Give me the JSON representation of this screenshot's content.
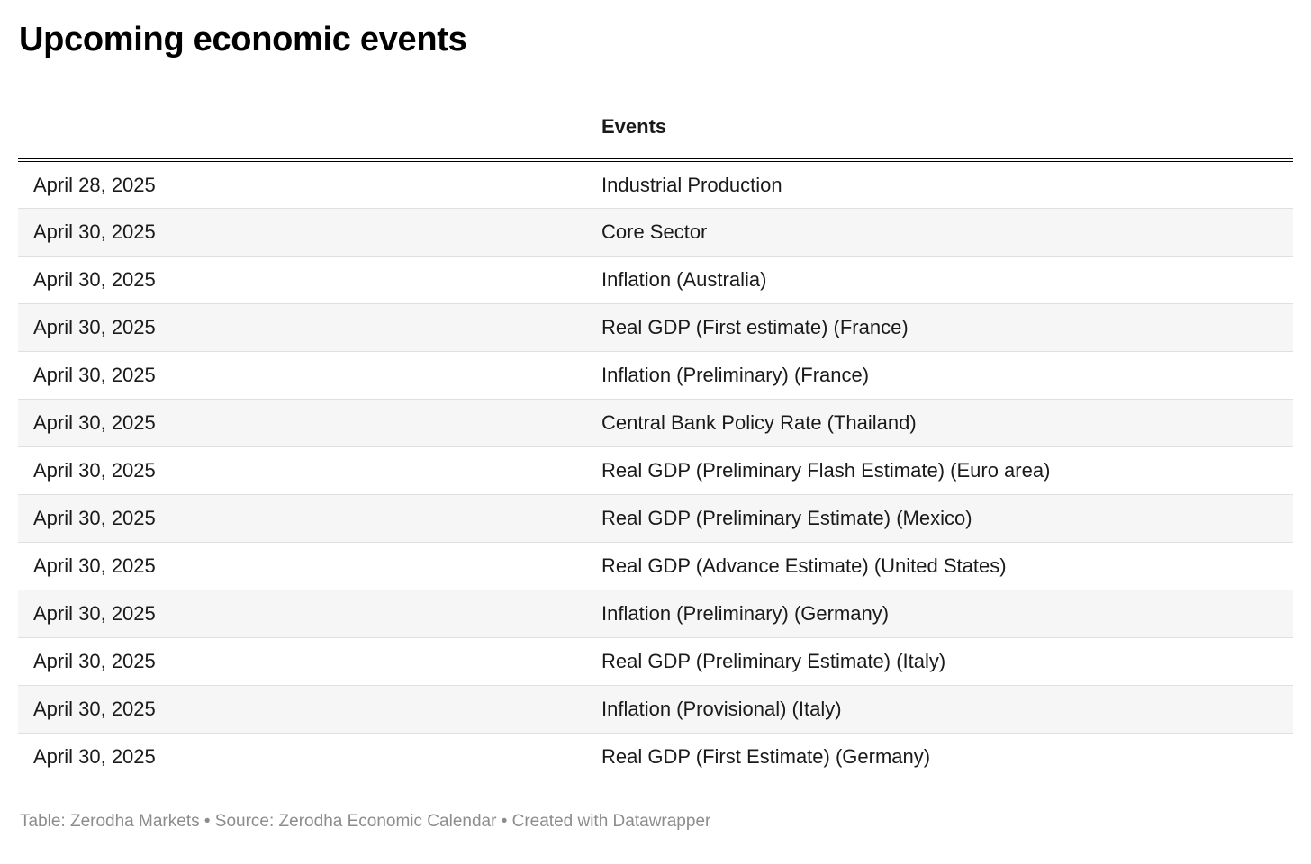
{
  "title": "Upcoming economic events",
  "header": {
    "date_column_label": "",
    "events_label": "Events"
  },
  "footer": {
    "text": "Table: Zerodha Markets • Source: Zerodha Economic Calendar • Created with Datawrapper"
  },
  "colors": {
    "stripe": "#f6f6f6",
    "row_border": "#e0e0e0",
    "header_border": "#000000",
    "text": "#1a1a1a",
    "footer_text": "#8c8c8c"
  },
  "chart_data": {
    "type": "table",
    "title": "Upcoming economic events",
    "columns": [
      "",
      "Events"
    ],
    "rows": [
      [
        "April 28, 2025",
        "Industrial Production"
      ],
      [
        "April 30, 2025",
        "Core Sector"
      ],
      [
        "April 30, 2025",
        "Inflation (Australia)"
      ],
      [
        "April 30, 2025",
        "Real GDP (First estimate) (France)"
      ],
      [
        "April 30, 2025",
        "Inflation (Preliminary) (France)"
      ],
      [
        "April 30, 2025",
        "Central Bank Policy Rate (Thailand)"
      ],
      [
        "April 30, 2025",
        "Real GDP (Preliminary Flash Estimate) (Euro area)"
      ],
      [
        "April 30, 2025",
        "Real GDP (Preliminary Estimate) (Mexico)"
      ],
      [
        "April 30, 2025",
        "Real GDP (Advance Estimate) (United States)"
      ],
      [
        "April 30, 2025",
        "Inflation (Preliminary) (Germany)"
      ],
      [
        "April 30, 2025",
        "Real GDP (Preliminary Estimate) (Italy)"
      ],
      [
        "April 30, 2025",
        "Inflation (Provisional) (Italy)"
      ],
      [
        "April 30, 2025",
        "Real GDP (First Estimate) (Germany)"
      ]
    ],
    "layout": {
      "striped_rows": true,
      "first_row_background": "white",
      "header_rule": "double-black",
      "grid": "horizontal-only"
    },
    "footnote": "Table: Zerodha Markets • Source: Zerodha Economic Calendar • Created with Datawrapper"
  }
}
